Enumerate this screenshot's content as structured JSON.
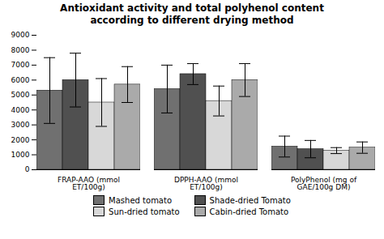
{
  "chart_data": {
    "type": "bar",
    "title": "Antioxidant activity and total polyhenol content\naccording to different drying method",
    "categories": [
      "FRAP-AAO (mmol\nET/100g)",
      "DPPH-AAO (mmol\nET/100g)",
      "PolyPhenol (mg of\nGAE/100g DM)"
    ],
    "series": [
      {
        "name": "Mashed tomato",
        "color": "#707070",
        "values": [
          5300,
          5400,
          1550
        ],
        "errors": [
          2200,
          1600,
          700
        ]
      },
      {
        "name": "Shade-dried Tomato",
        "color": "#505050",
        "values": [
          6000,
          6400,
          1380
        ],
        "errors": [
          1800,
          700,
          580
        ]
      },
      {
        "name": "Sun-dried tomato",
        "color": "#d8d8d8",
        "values": [
          4500,
          4600,
          1280
        ],
        "errors": [
          1600,
          1000,
          200
        ]
      },
      {
        "name": "Cabin-dried Tomato",
        "color": "#aaaaaa",
        "values": [
          5700,
          6000,
          1480
        ],
        "errors": [
          1200,
          1100,
          380
        ]
      }
    ],
    "ylim": [
      0,
      9000
    ],
    "yticks": [
      0,
      1000,
      2000,
      3000,
      4000,
      5000,
      6000,
      7000,
      8000,
      9000
    ],
    "legend": "bottom"
  }
}
